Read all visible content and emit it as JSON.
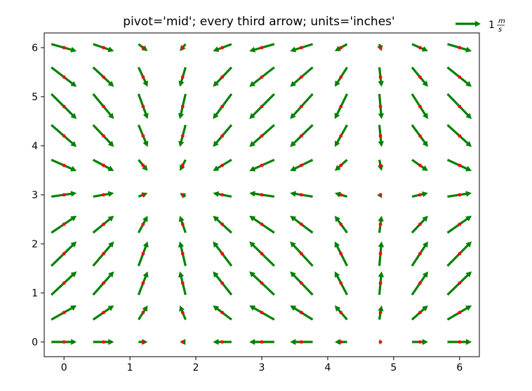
{
  "chart_data": {
    "type": "quiver",
    "title": "pivot='mid'; every third arrow; units='inches'",
    "xlabel": "",
    "ylabel": "",
    "xlim": [
      -0.3,
      6.3
    ],
    "ylim": [
      -0.3,
      6.3
    ],
    "xticks": [
      0,
      1,
      2,
      3,
      4,
      5,
      6
    ],
    "yticks": [
      0,
      1,
      2,
      3,
      4,
      5,
      6
    ],
    "grid": false,
    "field": {
      "u": "cos(X)",
      "v": "sin(Y)"
    },
    "grid_points": {
      "x": [
        0,
        0.6,
        1.2,
        1.8,
        2.4,
        3.0,
        3.6,
        4.2,
        4.8,
        5.4,
        6.0
      ],
      "y": [
        0,
        0.6,
        1.2,
        1.8,
        2.4,
        3.0,
        3.6,
        4.2,
        4.8,
        5.4,
        6.0
      ]
    },
    "arrow_color": "#008000",
    "point_color": "#ff0000",
    "pivot": "mid",
    "quiverkey": {
      "value": 1,
      "label_main": "1",
      "label_numerator": "m",
      "label_denominator": "s",
      "position": "top-right"
    }
  }
}
